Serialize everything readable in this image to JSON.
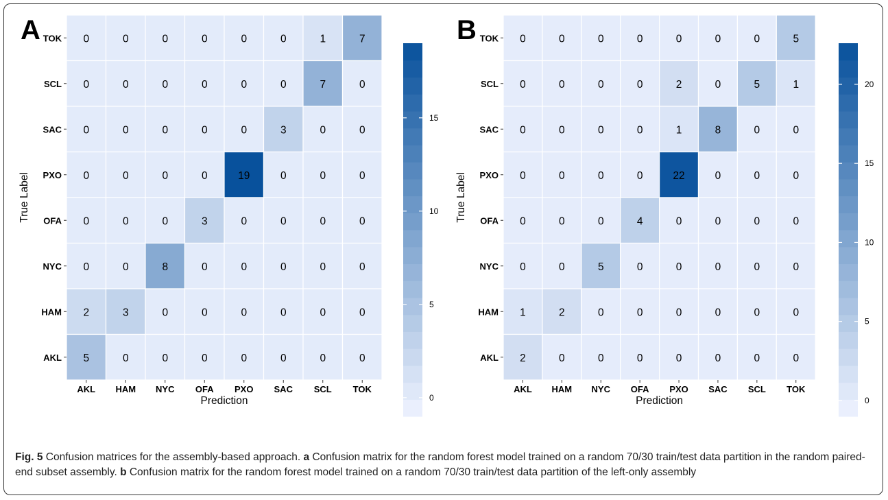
{
  "figure_caption": {
    "label": "Fig. 5",
    "text": "Confusion matrices for the assembly-based approach.",
    "part_a_letter": "a",
    "part_a_text": "Confusion matrix for the random forest model trained on a random 70/30 train/test data partition in the random paired-end subset assembly.",
    "part_b_letter": "b",
    "part_b_text": "Confusion matrix for the random forest model trained on a random 70/30 train/test data partition of the left-only assembly"
  },
  "colors": {
    "low": "#eff3ff",
    "high": "#08519c",
    "grid": "#ffffff",
    "text": "#000000"
  },
  "chart_data": [
    {
      "type": "heatmap",
      "panel_label": "A",
      "xlabel": "Prediction",
      "ylabel": "True Label",
      "x_categories": [
        "AKL",
        "HAM",
        "NYC",
        "OFA",
        "PXO",
        "SAC",
        "SCL",
        "TOK"
      ],
      "y_categories": [
        "TOK",
        "SCL",
        "SAC",
        "PXO",
        "OFA",
        "NYC",
        "HAM",
        "AKL"
      ],
      "values": [
        [
          0,
          0,
          0,
          0,
          0,
          0,
          1,
          7
        ],
        [
          0,
          0,
          0,
          0,
          0,
          0,
          7,
          0
        ],
        [
          0,
          0,
          0,
          0,
          0,
          3,
          0,
          0
        ],
        [
          0,
          0,
          0,
          0,
          19,
          0,
          0,
          0
        ],
        [
          0,
          0,
          0,
          3,
          0,
          0,
          0,
          0
        ],
        [
          0,
          0,
          8,
          0,
          0,
          0,
          0,
          0
        ],
        [
          2,
          3,
          0,
          0,
          0,
          0,
          0,
          0
        ],
        [
          5,
          0,
          0,
          0,
          0,
          0,
          0,
          0
        ]
      ],
      "colorbar": {
        "min": -1,
        "max": 19,
        "ticks": [
          0,
          5,
          10,
          15
        ]
      }
    },
    {
      "type": "heatmap",
      "panel_label": "B",
      "xlabel": "Prediction",
      "ylabel": "True Label",
      "x_categories": [
        "AKL",
        "HAM",
        "NYC",
        "OFA",
        "PXO",
        "SAC",
        "SCL",
        "TOK"
      ],
      "y_categories": [
        "TOK",
        "SCL",
        "SAC",
        "PXO",
        "OFA",
        "NYC",
        "HAM",
        "AKL"
      ],
      "values": [
        [
          0,
          0,
          0,
          0,
          0,
          0,
          0,
          5
        ],
        [
          0,
          0,
          0,
          0,
          2,
          0,
          5,
          1
        ],
        [
          0,
          0,
          0,
          0,
          1,
          8,
          0,
          0
        ],
        [
          0,
          0,
          0,
          0,
          22,
          0,
          0,
          0
        ],
        [
          0,
          0,
          0,
          4,
          0,
          0,
          0,
          0
        ],
        [
          0,
          0,
          5,
          0,
          0,
          0,
          0,
          0
        ],
        [
          1,
          2,
          0,
          0,
          0,
          0,
          0,
          0
        ],
        [
          2,
          0,
          0,
          0,
          0,
          0,
          0,
          0
        ]
      ],
      "colorbar": {
        "min": -1,
        "max": 22.6,
        "ticks": [
          0,
          5,
          10,
          15,
          20
        ]
      }
    }
  ]
}
